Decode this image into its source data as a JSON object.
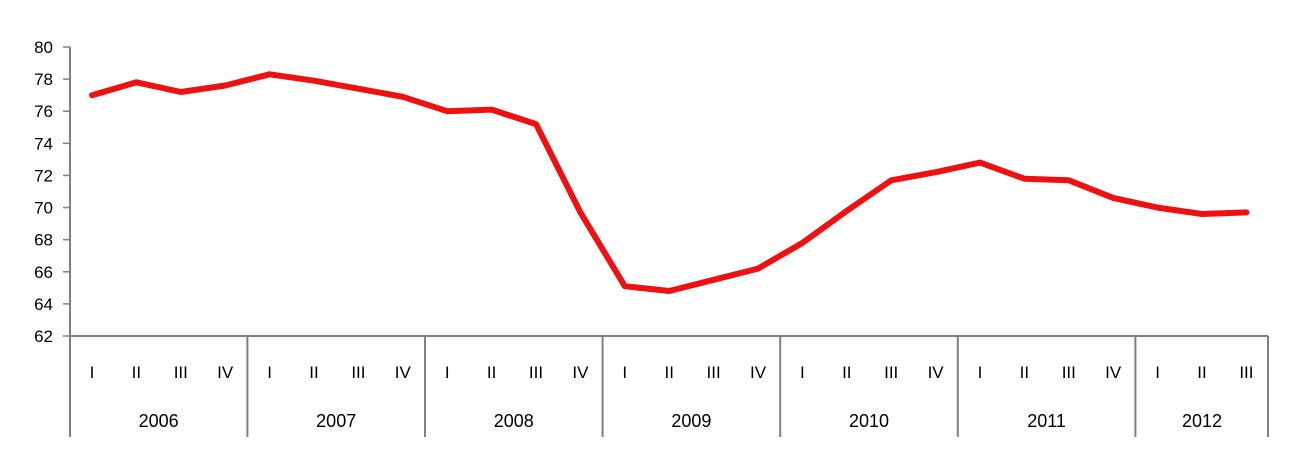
{
  "chart_data": {
    "type": "line",
    "title": "",
    "xlabel": "",
    "ylabel": "",
    "ylim": [
      62,
      80
    ],
    "yticks": [
      62,
      64,
      66,
      68,
      70,
      72,
      74,
      76,
      78,
      80
    ],
    "grid": false,
    "legend": "none",
    "line_color": "#ee1111",
    "years": [
      {
        "label": "2006",
        "quarters": [
          "I",
          "II",
          "III",
          "IV"
        ]
      },
      {
        "label": "2007",
        "quarters": [
          "I",
          "II",
          "III",
          "IV"
        ]
      },
      {
        "label": "2008",
        "quarters": [
          "I",
          "II",
          "III",
          "IV"
        ]
      },
      {
        "label": "2009",
        "quarters": [
          "I",
          "II",
          "III",
          "IV"
        ]
      },
      {
        "label": "2010",
        "quarters": [
          "I",
          "II",
          "III",
          "IV"
        ]
      },
      {
        "label": "2011",
        "quarters": [
          "I",
          "II",
          "III",
          "IV"
        ]
      },
      {
        "label": "2012",
        "quarters": [
          "I",
          "II",
          "III"
        ]
      }
    ],
    "series": [
      {
        "values": [
          77.0,
          77.8,
          77.2,
          77.6,
          78.3,
          77.9,
          77.4,
          76.9,
          76.0,
          76.1,
          75.2,
          69.7,
          65.1,
          64.8,
          65.5,
          66.2,
          67.8,
          69.8,
          71.7,
          72.2,
          72.8,
          71.8,
          71.7,
          70.6,
          70.0,
          69.6,
          69.7
        ]
      }
    ]
  }
}
